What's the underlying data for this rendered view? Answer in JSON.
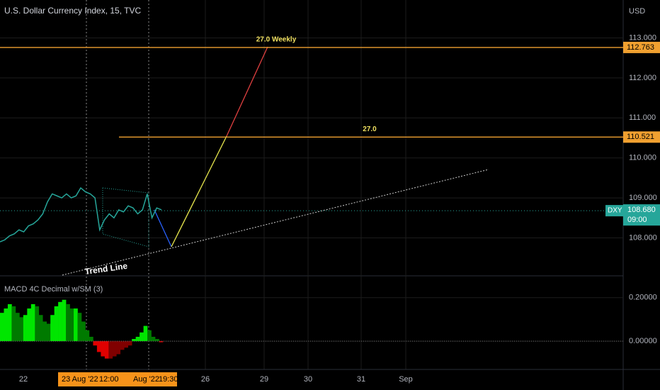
{
  "header": {
    "title": "U.S. Dollar Currency Index, 15, TVC"
  },
  "price_axis": {
    "unit": "USD",
    "ylim": [
      107.05,
      113.95
    ],
    "ticks": [
      {
        "value": 113,
        "label": "113.000"
      },
      {
        "value": 112,
        "label": "112.000"
      },
      {
        "value": 111,
        "label": "111.000"
      },
      {
        "value": 110,
        "label": "110.000"
      },
      {
        "value": 109,
        "label": "109.000"
      },
      {
        "value": 108,
        "label": "108.000"
      }
    ]
  },
  "levels": [
    {
      "value": 112.763,
      "label": "112.763",
      "annotation": "27.0 Weekly",
      "color": "#f0a030"
    },
    {
      "value": 110.521,
      "label": "110.521",
      "annotation": "27.0",
      "color": "#f0a030"
    }
  ],
  "current": {
    "symbol": "DXY",
    "value": 108.68,
    "label": "108.680",
    "countdown": "09:00",
    "color": "#26a69a"
  },
  "trend_line": {
    "label": "Trend Line"
  },
  "price_series": {
    "color": "#26a69a",
    "values": [
      107.9,
      107.95,
      108.05,
      108.1,
      108.2,
      108.15,
      108.3,
      108.35,
      108.45,
      108.6,
      108.9,
      109.1,
      109.05,
      109.0,
      109.1,
      109.0,
      109.05,
      109.25,
      109.15,
      109.1,
      109.0,
      108.2,
      108.45,
      108.6,
      108.5,
      108.7,
      108.65,
      108.8,
      108.75,
      108.6,
      108.7,
      109.1,
      108.5,
      108.75,
      108.7
    ]
  },
  "indicator": {
    "title": "MACD 4C Decimal w/SM (3)",
    "ylim": [
      -0.13,
      0.3
    ],
    "ticks": [
      {
        "value": 0.2,
        "label": "0.20000"
      },
      {
        "value": 0,
        "label": "0.00000"
      }
    ],
    "colors": {
      "rise_pos": "#00e600",
      "fall_pos": "#007a00",
      "fall_neg": "#e00000",
      "rise_neg": "#800000"
    },
    "values": [
      0.13,
      0.15,
      0.17,
      0.16,
      0.13,
      0.11,
      0.12,
      0.15,
      0.17,
      0.16,
      0.12,
      0.09,
      0.08,
      0.12,
      0.16,
      0.18,
      0.19,
      0.17,
      0.15,
      0.15,
      0.13,
      0.09,
      0.05,
      0.02,
      -0.02,
      -0.05,
      -0.07,
      -0.08,
      -0.08,
      -0.07,
      -0.06,
      -0.04,
      -0.03,
      -0.02,
      0.01,
      0.02,
      0.04,
      0.07,
      0.05,
      0.02,
      0.01,
      -0.005
    ]
  },
  "time_axis": {
    "labels": [
      "22",
      "26",
      "29",
      "30",
      "31",
      "Sep"
    ],
    "highlight": [
      "23 Aug '22",
      "12:00",
      "Aug '22",
      "19:30"
    ]
  }
}
